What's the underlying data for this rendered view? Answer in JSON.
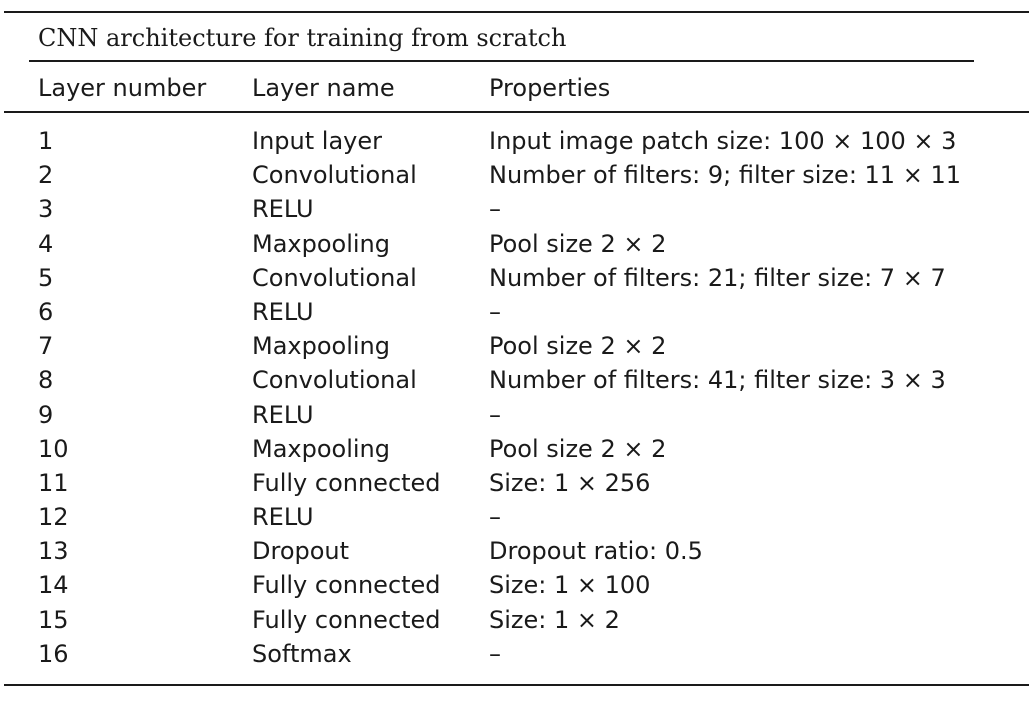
{
  "table": {
    "caption": "CNN architecture for training from scratch",
    "headers": [
      "Layer number",
      "Layer name",
      "Properties"
    ],
    "rows": [
      [
        "1",
        "Input layer",
        "Input image patch size: 100 × 100 × 3"
      ],
      [
        "2",
        "Convolutional",
        "Number of filters: 9; filter size: 11 × 11"
      ],
      [
        "3",
        "RELU",
        "–"
      ],
      [
        "4",
        "Maxpooling",
        "Pool size 2 × 2"
      ],
      [
        "5",
        "Convolutional",
        "Number of filters: 21; filter size: 7 × 7"
      ],
      [
        "6",
        "RELU",
        "–"
      ],
      [
        "7",
        "Maxpooling",
        "Pool size 2 × 2"
      ],
      [
        "8",
        "Convolutional",
        "Number of filters: 41; filter size: 3 × 3"
      ],
      [
        "9",
        "RELU",
        "–"
      ],
      [
        "10",
        "Maxpooling",
        "Pool size 2 × 2"
      ],
      [
        "11",
        "Fully connected",
        "Size: 1 × 256"
      ],
      [
        "12",
        "RELU",
        "–"
      ],
      [
        "13",
        "Dropout",
        "Dropout ratio: 0.5"
      ],
      [
        "14",
        "Fully connected",
        "Size: 1 × 100"
      ],
      [
        "15",
        "Fully connected",
        "Size: 1 × 2"
      ],
      [
        "16",
        "Softmax",
        "–"
      ]
    ]
  }
}
